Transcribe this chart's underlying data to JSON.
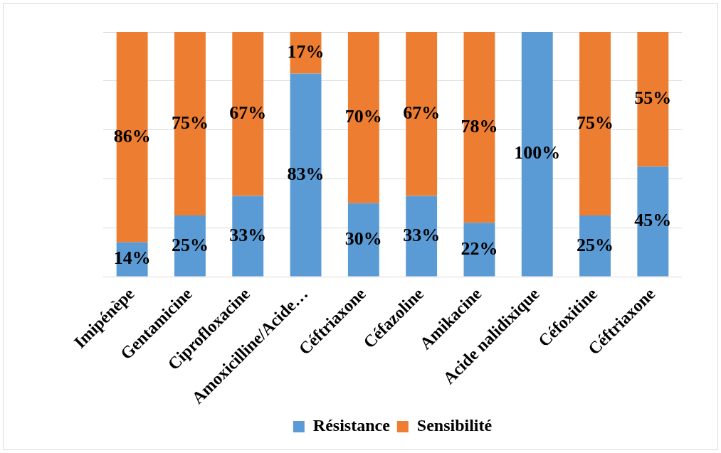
{
  "chart_data": {
    "type": "bar",
    "stacked": true,
    "categories": [
      "Imipénèpe",
      "Gentamicine",
      "Ciprofloxacine",
      "Amoxicilline/Acide…",
      "Céftriaxone",
      "Céfazoline",
      "Amikacine",
      "Acide nalidixique",
      "Céfoxitine",
      "Céftriaxone"
    ],
    "series": [
      {
        "name": "Résistance",
        "color": "#5b9bd5",
        "values": [
          14,
          25,
          33,
          83,
          30,
          33,
          22,
          100,
          25,
          45
        ],
        "value_labels": [
          "14%",
          "25%",
          "33%",
          "83%",
          "30%",
          "33%",
          "22%",
          "100%",
          "25%",
          "45%"
        ]
      },
      {
        "name": "Sensibilité",
        "color": "#ed7d31",
        "values": [
          86,
          75,
          67,
          17,
          70,
          67,
          78,
          0,
          75,
          55
        ],
        "value_labels": [
          "86%",
          "75%",
          "67%",
          "17%",
          "70%",
          "67%",
          "78%",
          null,
          "75%",
          "55%"
        ]
      }
    ],
    "ylim": [
      0,
      100
    ],
    "yticks": [
      {
        "value": 0,
        "label": null
      },
      {
        "value": 20,
        "label": null
      },
      {
        "value": 40,
        "label": null
      },
      {
        "value": 60,
        "label": null
      },
      {
        "value": 80,
        "label": null
      },
      {
        "value": 100,
        "label": null
      }
    ],
    "grid": "y",
    "tick_labels": "x",
    "legend": "bottom"
  }
}
